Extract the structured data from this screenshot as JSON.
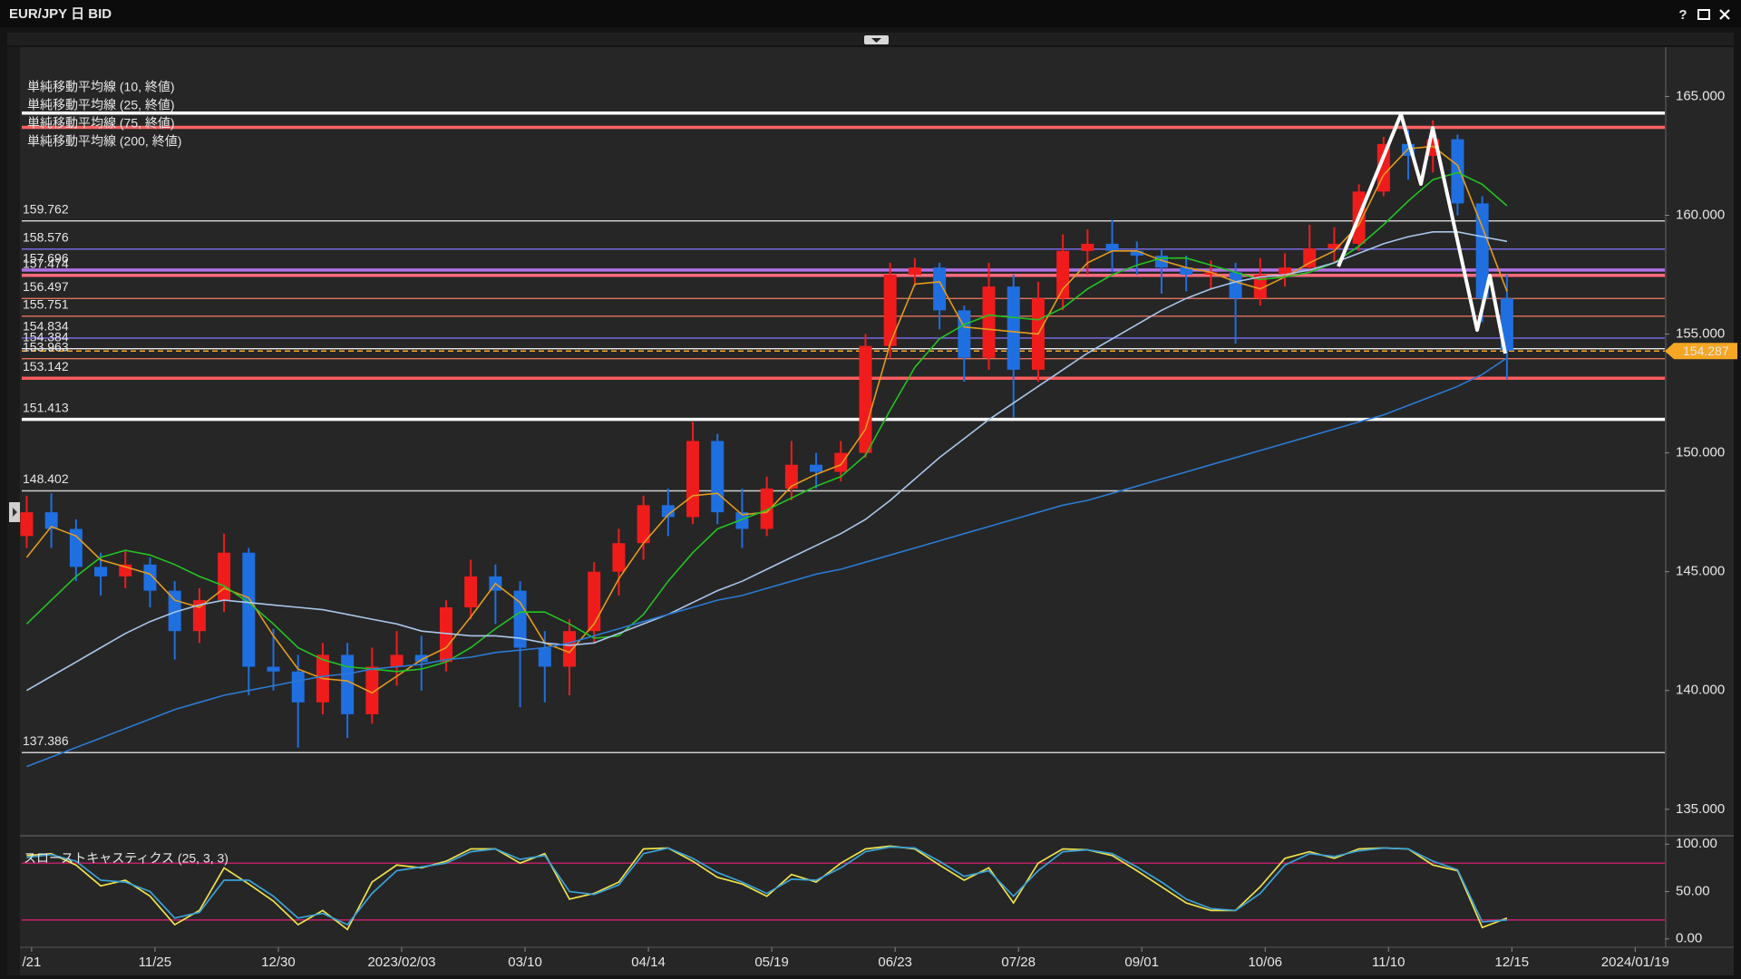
{
  "window": {
    "title": "EUR/JPY 日 BID",
    "help": "?"
  },
  "chart_data": [
    {
      "type": "candlestick",
      "x": [
        -1,
        4,
        9,
        14,
        19,
        24,
        29,
        34,
        39,
        44,
        49,
        54,
        59,
        64,
        69,
        74,
        79,
        84,
        89,
        94,
        99,
        104,
        109,
        114,
        119,
        124,
        129,
        134,
        139,
        144,
        149,
        154,
        159,
        164,
        169,
        174,
        179,
        184,
        189,
        194,
        199,
        204,
        209,
        214,
        219,
        224,
        229,
        234,
        239,
        244,
        249,
        254,
        259,
        264,
        269,
        274,
        279,
        284,
        289,
        294,
        299
      ],
      "open": [
        146.5,
        147.5,
        146.8,
        145.2,
        144.8,
        145.3,
        144.2,
        142.5,
        143.8,
        145.8,
        141.0,
        140.8,
        139.5,
        141.5,
        139.0,
        141.0,
        141.5,
        141.2,
        143.5,
        144.8,
        144.2,
        141.8,
        141.0,
        142.5,
        145.0,
        146.2,
        147.8,
        147.3,
        150.5,
        147.5,
        146.8,
        148.5,
        149.5,
        149.2,
        150.0,
        154.5,
        157.5,
        157.8,
        156.0,
        154.0,
        157.0,
        153.5,
        156.5,
        158.5,
        158.8,
        158.5,
        158.3,
        157.8,
        157.5,
        157.6,
        156.5,
        157.5,
        157.8,
        158.6,
        158.8,
        161.0,
        163.0,
        162.5,
        163.2,
        160.5,
        156.5
      ],
      "high": [
        148.2,
        148.3,
        147.2,
        145.8,
        145.9,
        145.6,
        144.6,
        144.3,
        146.6,
        146.0,
        142.6,
        141.5,
        142.0,
        142.0,
        141.8,
        142.5,
        142.3,
        143.8,
        145.5,
        145.3,
        144.6,
        142.5,
        143.0,
        145.4,
        146.8,
        148.2,
        148.5,
        151.3,
        150.8,
        148.5,
        149.0,
        150.5,
        150.0,
        150.5,
        155.0,
        158.0,
        158.2,
        158.0,
        156.2,
        158.0,
        157.5,
        157.2,
        159.2,
        159.4,
        159.8,
        158.9,
        158.6,
        158.3,
        158.1,
        158.0,
        158.2,
        158.4,
        159.6,
        159.5,
        161.3,
        163.3,
        163.6,
        164.0,
        163.4,
        160.8,
        157.5
      ],
      "low": [
        146.0,
        146.0,
        144.6,
        144.0,
        144.3,
        143.5,
        141.3,
        142.0,
        143.3,
        139.8,
        140.0,
        137.6,
        139.0,
        138.0,
        138.6,
        140.2,
        140.0,
        140.8,
        143.0,
        142.8,
        139.3,
        139.5,
        139.8,
        142.0,
        144.0,
        145.5,
        146.5,
        147.0,
        147.0,
        146.0,
        146.5,
        148.0,
        148.5,
        148.8,
        149.8,
        154.0,
        157.0,
        155.2,
        153.0,
        153.5,
        151.5,
        153.0,
        156.0,
        157.5,
        157.6,
        157.5,
        156.7,
        156.8,
        156.9,
        154.6,
        156.2,
        157.0,
        157.6,
        158.0,
        158.5,
        160.8,
        161.5,
        161.8,
        160.0,
        155.5,
        153.1
      ],
      "close": [
        147.5,
        146.8,
        145.2,
        144.8,
        145.3,
        144.2,
        142.5,
        143.8,
        145.8,
        141.0,
        140.8,
        139.5,
        141.5,
        139.0,
        141.0,
        141.5,
        141.2,
        143.5,
        144.8,
        144.2,
        141.8,
        141.0,
        142.5,
        145.0,
        146.2,
        147.8,
        147.3,
        150.5,
        147.5,
        146.8,
        148.5,
        149.5,
        149.2,
        150.0,
        154.5,
        157.5,
        157.8,
        156.0,
        154.0,
        157.0,
        153.5,
        156.5,
        158.5,
        158.8,
        158.5,
        158.3,
        157.8,
        157.5,
        157.6,
        156.5,
        157.5,
        157.8,
        158.6,
        158.8,
        161.0,
        163.0,
        162.5,
        163.2,
        160.5,
        156.5,
        154.3
      ],
      "up_color": "#f01c1c",
      "down_color": "#1f6fe0",
      "series": [
        {
          "name": "単純移動平均線 (10, 終値)",
          "color": "#e39b1c",
          "values": [
            145.6,
            146.9,
            146.5,
            145.5,
            145.2,
            144.9,
            143.8,
            143.5,
            144.3,
            143.9,
            142.3,
            140.9,
            140.5,
            140.4,
            139.9,
            140.6,
            141.3,
            141.8,
            143.1,
            144.5,
            143.7,
            142.0,
            141.6,
            142.8,
            144.7,
            146.2,
            147.4,
            148.2,
            148.3,
            147.4,
            147.5,
            148.6,
            149.1,
            149.5,
            151.0,
            154.6,
            157.1,
            157.2,
            155.3,
            155.2,
            155.1,
            155.0,
            156.9,
            158.0,
            158.5,
            158.5,
            158.1,
            157.8,
            157.6,
            157.2,
            156.9,
            157.4,
            158.0,
            158.5,
            159.6,
            161.7,
            162.8,
            162.9,
            162.1,
            159.5,
            156.8
          ]
        },
        {
          "name": "単純移動平均線 (25, 終値)",
          "color": "#22c322",
          "values": [
            142.8,
            143.8,
            144.8,
            145.6,
            145.9,
            145.7,
            145.3,
            144.8,
            144.4,
            143.7,
            142.8,
            141.8,
            141.3,
            141.0,
            140.9,
            140.8,
            140.9,
            141.2,
            141.8,
            142.6,
            143.3,
            143.3,
            142.8,
            142.2,
            142.3,
            143.2,
            144.6,
            145.8,
            146.8,
            147.2,
            147.6,
            148.1,
            148.6,
            149.0,
            149.9,
            151.8,
            153.6,
            154.8,
            155.4,
            155.8,
            155.7,
            155.6,
            156.1,
            156.9,
            157.5,
            157.9,
            158.2,
            158.2,
            157.9,
            157.6,
            157.3,
            157.4,
            157.6,
            158.0,
            158.7,
            159.6,
            160.6,
            161.5,
            161.8,
            161.3,
            160.4
          ]
        },
        {
          "name": "単純移動平均線 (75, 終値)",
          "color": "#a9c6ea",
          "values": [
            140.0,
            140.6,
            141.2,
            141.8,
            142.4,
            142.9,
            143.3,
            143.6,
            143.8,
            143.7,
            143.6,
            143.5,
            143.4,
            143.2,
            143.0,
            142.8,
            142.5,
            142.4,
            142.3,
            142.3,
            142.2,
            142.0,
            141.9,
            142.0,
            142.4,
            142.8,
            143.2,
            143.7,
            144.2,
            144.6,
            145.1,
            145.6,
            146.1,
            146.6,
            147.2,
            148.0,
            148.9,
            149.8,
            150.6,
            151.4,
            152.1,
            152.8,
            153.5,
            154.2,
            154.8,
            155.4,
            156.0,
            156.5,
            156.9,
            157.2,
            157.4,
            157.5,
            157.7,
            158.0,
            158.4,
            158.8,
            159.1,
            159.3,
            159.3,
            159.1,
            158.9
          ]
        },
        {
          "name": "単純移動平均線 (200, 終値)",
          "color": "#2b7ad3",
          "values": [
            136.8,
            137.2,
            137.6,
            138.0,
            138.4,
            138.8,
            139.2,
            139.5,
            139.8,
            140.0,
            140.2,
            140.4,
            140.6,
            140.7,
            140.9,
            141.0,
            141.1,
            141.3,
            141.4,
            141.6,
            141.7,
            141.8,
            142.0,
            142.3,
            142.6,
            142.9,
            143.2,
            143.5,
            143.8,
            144.0,
            144.3,
            144.6,
            144.9,
            145.1,
            145.4,
            145.7,
            146.0,
            146.3,
            146.6,
            146.9,
            147.2,
            147.5,
            147.8,
            148.0,
            148.3,
            148.6,
            148.9,
            149.2,
            149.5,
            149.8,
            150.1,
            150.4,
            150.7,
            151.0,
            151.3,
            151.6,
            152.0,
            152.4,
            152.8,
            153.3,
            154.0
          ]
        }
      ],
      "levels": [
        {
          "value": 159.762,
          "color": "#d8d8d8",
          "style": "thin"
        },
        {
          "value": 158.576,
          "color": "#7d6ff2",
          "style": "thin"
        },
        {
          "value": 157.696,
          "color": "#b072e6",
          "style": "thick"
        },
        {
          "value": 157.474,
          "color": "#ff6b7c",
          "style": "thick"
        },
        {
          "value": 156.497,
          "color": "#e2735c",
          "style": "thin"
        },
        {
          "value": 155.751,
          "color": "#e2735c",
          "style": "thin"
        },
        {
          "value": 154.834,
          "color": "#7d6ff2",
          "style": "thin"
        },
        {
          "value": 154.384,
          "color": "#e8e8e8",
          "style": "thin"
        },
        {
          "value": 153.963,
          "color": "#e2735c",
          "style": "thin"
        },
        {
          "value": 153.142,
          "color": "#ff5c5c",
          "style": "thick"
        },
        {
          "value": 151.413,
          "color": "#ffffff",
          "style": "thick"
        },
        {
          "value": 148.402,
          "color": "#cfcfcf",
          "style": "thin"
        },
        {
          "value": 137.386,
          "color": "#cfcfcf",
          "style": "thin"
        }
      ],
      "extra_lines": [
        {
          "value": 164.3,
          "color": "#ffffff",
          "style": "thick"
        },
        {
          "value": 163.7,
          "color": "#ff6262",
          "style": "thick"
        }
      ],
      "current_price": 154.287,
      "current_color": "#f5a623",
      "xlim": [
        -2,
        331
      ],
      "ylim": [
        134,
        167
      ],
      "yticks": [
        {
          "value": 135,
          "label": "135.000"
        },
        {
          "value": 140,
          "label": "140.000"
        },
        {
          "value": 145,
          "label": "145.000"
        },
        {
          "value": 150,
          "label": "150.000"
        },
        {
          "value": 155,
          "label": "155.000"
        },
        {
          "value": 160,
          "label": "160.000"
        },
        {
          "value": 165,
          "label": "165.000"
        }
      ],
      "xticks": [
        {
          "value": 0,
          "label": "/21"
        },
        {
          "value": 25,
          "label": "11/25"
        },
        {
          "value": 50,
          "label": "12/30"
        },
        {
          "value": 75,
          "label": "2023/02/03"
        },
        {
          "value": 100,
          "label": "03/10"
        },
        {
          "value": 125,
          "label": "04/14"
        },
        {
          "value": 150,
          "label": "05/19"
        },
        {
          "value": 175,
          "label": "06/23"
        },
        {
          "value": 200,
          "label": "07/28"
        },
        {
          "value": 225,
          "label": "09/01"
        },
        {
          "value": 250,
          "label": "10/06"
        },
        {
          "value": 275,
          "label": "11/10"
        },
        {
          "value": 300,
          "label": "12/15"
        },
        {
          "value": 325,
          "label": "2024/01/19"
        }
      ]
    },
    {
      "type": "line",
      "title": "スローストキャスティクス (25, 3, 3)",
      "title_color": "#3fa6d6",
      "series": [
        {
          "color": "#efe24a",
          "values": [
            88,
            90,
            78,
            56,
            62,
            45,
            15,
            30,
            75,
            58,
            40,
            15,
            30,
            10,
            60,
            78,
            75,
            82,
            95,
            95,
            80,
            90,
            42,
            48,
            60,
            95,
            96,
            82,
            65,
            58,
            45,
            68,
            60,
            80,
            95,
            98,
            95,
            78,
            62,
            75,
            38,
            80,
            95,
            94,
            88,
            72,
            55,
            38,
            30,
            30,
            55,
            85,
            92,
            85,
            95,
            96,
            95,
            78,
            72,
            12,
            22
          ]
        },
        {
          "color": "#3aa2d8",
          "values": [
            86,
            89,
            82,
            62,
            60,
            50,
            22,
            28,
            62,
            62,
            45,
            22,
            27,
            15,
            48,
            72,
            76,
            80,
            92,
            95,
            84,
            88,
            50,
            47,
            57,
            90,
            96,
            85,
            70,
            60,
            48,
            63,
            62,
            75,
            92,
            97,
            96,
            82,
            66,
            72,
            45,
            72,
            92,
            94,
            90,
            76,
            60,
            42,
            32,
            30,
            48,
            78,
            90,
            87,
            93,
            96,
            95,
            82,
            73,
            18,
            20
          ]
        }
      ],
      "bands": [
        80,
        20
      ],
      "band_color": "#c8206c",
      "ylim": [
        -5,
        106
      ],
      "yticks": [
        {
          "value": 100,
          "label": "100.00"
        },
        {
          "value": 50,
          "label": "50.00"
        },
        {
          "value": 0,
          "label": "0.00"
        }
      ]
    }
  ]
}
